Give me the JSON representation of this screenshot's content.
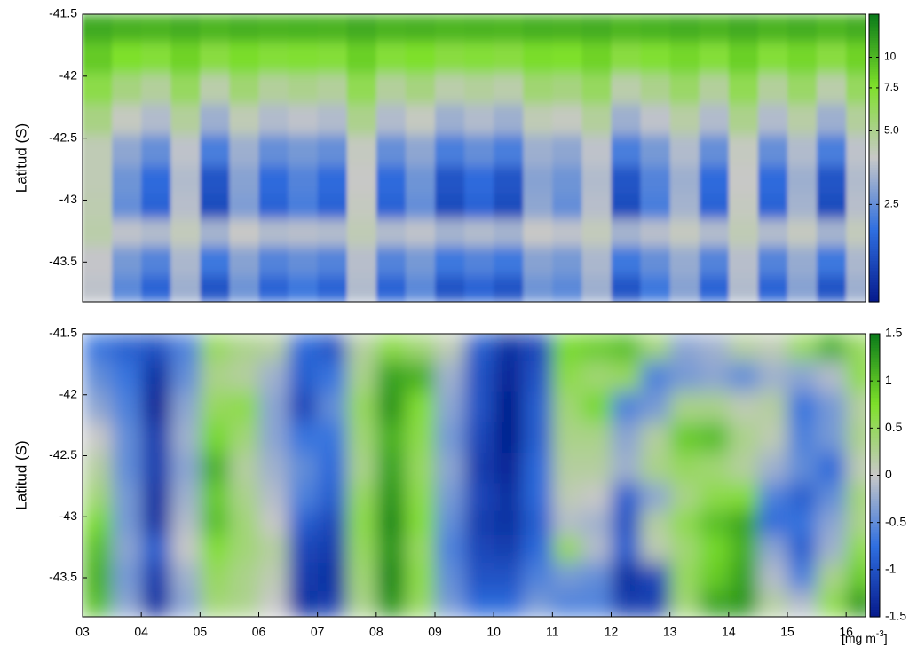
{
  "chart_data": [
    {
      "type": "heatmap",
      "ylabel": "Latitud (S)",
      "color_scale": "log",
      "colormap": [
        "#061a8c",
        "#2f6fe0",
        "#c8c8c8",
        "#7ee02a",
        "#0a7a1a"
      ],
      "xlim": [
        3,
        16.33
      ],
      "ylim": [
        -43.82,
        -41.5
      ],
      "yticks": [
        -41.5,
        -42,
        -42.5,
        -43,
        -43.5
      ],
      "clim": [
        1,
        15
      ],
      "cticks": [
        2.5,
        {
          "value": 5,
          "label": "5.0"
        },
        7.5,
        10
      ],
      "x": [
        3.25,
        3.75,
        4.25,
        4.75,
        5.25,
        5.75,
        6.25,
        6.75,
        7.25,
        7.75,
        8.25,
        8.75,
        9.25,
        9.75,
        10.25,
        10.75,
        11.25,
        11.75,
        12.25,
        12.75,
        13.25,
        13.75,
        14.25,
        14.75,
        15.25,
        15.75,
        16.25
      ],
      "y": [
        -41.6,
        -41.85,
        -42.1,
        -42.35,
        -42.6,
        -42.85,
        -43.05,
        -43.25,
        -43.5,
        -43.72
      ],
      "values": [
        [
          10.9,
          10.4,
          10.2,
          10.7,
          10.1,
          10.5,
          10.2,
          10.3,
          10.2,
          10.8,
          10.2,
          10.4,
          10.1,
          10.2,
          10.1,
          10.5,
          10.4,
          10.7,
          10.1,
          10.3,
          10.6,
          10.2,
          10.8,
          10.2,
          10.6,
          10.1,
          10.7
        ],
        [
          8.8,
          7.6,
          7.2,
          8.3,
          6.9,
          7.8,
          7.2,
          7.4,
          7.2,
          8.5,
          7.2,
          7.6,
          6.9,
          7.2,
          6.9,
          7.8,
          7.6,
          8.3,
          6.9,
          7.4,
          8.1,
          7.2,
          8.5,
          7.2,
          8.1,
          6.9,
          8.3
        ],
        [
          6.7,
          5.3,
          4.7,
          6.1,
          4.4,
          5.6,
          4.7,
          5.0,
          4.7,
          6.4,
          4.7,
          5.3,
          4.4,
          4.7,
          4.4,
          5.6,
          5.3,
          6.1,
          4.4,
          5.0,
          5.9,
          4.7,
          6.4,
          4.7,
          5.9,
          4.4,
          6.1
        ],
        [
          5.2,
          4.0,
          3.5,
          4.7,
          3.2,
          4.2,
          3.5,
          3.7,
          3.5,
          5.0,
          3.5,
          4.0,
          3.2,
          3.5,
          3.2,
          4.2,
          4.0,
          4.7,
          3.2,
          3.7,
          4.5,
          3.5,
          5.0,
          3.5,
          4.5,
          3.2,
          4.7
        ],
        [
          4.2,
          3.0,
          2.5,
          3.7,
          2.2,
          3.2,
          2.5,
          2.7,
          2.5,
          4.0,
          2.5,
          3.0,
          2.2,
          2.5,
          2.2,
          3.2,
          3.0,
          3.7,
          2.2,
          2.7,
          3.5,
          2.5,
          4.0,
          2.5,
          3.5,
          2.2,
          3.7
        ],
        [
          4.2,
          2.6,
          1.9,
          3.5,
          1.6,
          2.9,
          1.9,
          2.3,
          1.9,
          3.9,
          1.9,
          2.6,
          1.6,
          1.9,
          1.6,
          2.9,
          2.6,
          3.5,
          1.6,
          2.3,
          3.2,
          1.9,
          3.9,
          1.9,
          3.2,
          1.6,
          3.5
        ],
        [
          4.3,
          2.5,
          1.8,
          3.6,
          1.5,
          2.8,
          1.8,
          2.2,
          1.8,
          4.0,
          1.8,
          2.5,
          1.5,
          1.8,
          1.5,
          3.0,
          2.5,
          3.6,
          1.5,
          2.2,
          3.3,
          1.8,
          4.0,
          1.8,
          3.3,
          1.5,
          3.6
        ],
        [
          4.4,
          3.7,
          3.5,
          4.1,
          3.3,
          3.9,
          3.5,
          3.6,
          3.5,
          4.2,
          3.5,
          3.7,
          3.3,
          3.5,
          3.3,
          3.9,
          3.7,
          4.1,
          3.3,
          3.6,
          4.0,
          3.5,
          4.2,
          3.5,
          4.0,
          3.3,
          4.1
        ],
        [
          3.8,
          2.7,
          2.3,
          3.4,
          2.1,
          2.9,
          2.3,
          2.5,
          2.3,
          3.6,
          2.3,
          2.7,
          2.1,
          2.3,
          2.1,
          2.9,
          2.7,
          3.4,
          2.1,
          2.5,
          3.1,
          2.3,
          3.6,
          2.3,
          3.1,
          2.1,
          3.4
        ],
        [
          3.7,
          2.4,
          1.8,
          3.2,
          1.6,
          2.6,
          1.8,
          2.1,
          1.8,
          3.5,
          1.8,
          2.4,
          1.6,
          1.8,
          1.6,
          2.6,
          2.4,
          3.2,
          1.6,
          2.1,
          2.9,
          1.8,
          3.5,
          1.8,
          2.9,
          1.6,
          3.2
        ]
      ]
    },
    {
      "type": "heatmap",
      "ylabel": "Latitud (S)",
      "color_scale": "linear",
      "colormap": [
        "#061a8c",
        "#2f6fe0",
        "#c8c8c8",
        "#7ee02a",
        "#0a7a1a"
      ],
      "xlim": [
        3,
        16.33
      ],
      "ylim": [
        -43.82,
        -41.5
      ],
      "yticks": [
        -41.5,
        -42,
        -42.5,
        -43,
        -43.5
      ],
      "xticks": [
        {
          "value": 3,
          "label": "03"
        },
        {
          "value": 4,
          "label": "04"
        },
        {
          "value": 5,
          "label": "05"
        },
        {
          "value": 6,
          "label": "06"
        },
        {
          "value": 7,
          "label": "07"
        },
        {
          "value": 8,
          "label": "08"
        },
        {
          "value": 9,
          "label": "09"
        },
        {
          "value": 10,
          "label": "10"
        },
        {
          "value": 11,
          "label": "11"
        },
        {
          "value": 12,
          "label": "12"
        },
        {
          "value": 13,
          "label": "13"
        },
        {
          "value": 14,
          "label": "14"
        },
        {
          "value": 15,
          "label": "15"
        },
        {
          "value": 16,
          "label": "16"
        }
      ],
      "clim": [
        -1.5,
        1.5
      ],
      "cticks": [
        -1.5,
        -1,
        -0.5,
        0,
        0.5,
        1,
        1.5
      ],
      "unit_label": {
        "base": "[mg m",
        "sup": "-3",
        "end": "]"
      },
      "x": [
        3.25,
        3.75,
        4.25,
        4.75,
        5.25,
        5.75,
        6.25,
        6.75,
        7.25,
        7.75,
        8.25,
        8.75,
        9.25,
        9.75,
        10.25,
        10.75,
        11.25,
        11.75,
        12.25,
        12.75,
        13.25,
        13.75,
        14.25,
        14.75,
        15.25,
        15.75,
        16.25
      ],
      "y": [
        -41.6,
        -41.85,
        -42.1,
        -42.35,
        -42.6,
        -42.85,
        -43.05,
        -43.25,
        -43.5,
        -43.72
      ],
      "values": [
        [
          -0.7,
          -0.9,
          -1.0,
          -0.6,
          0.5,
          0.3,
          0.2,
          -0.8,
          -1.0,
          0.2,
          0.6,
          0.4,
          0.1,
          -0.9,
          -1.3,
          -1.1,
          0.8,
          0.9,
          1.0,
          0.4,
          -0.3,
          -0.2,
          0.2,
          0.1,
          0.5,
          1.1,
          0.5
        ],
        [
          -0.5,
          -0.7,
          -1.3,
          -0.5,
          0.3,
          0.2,
          -0.2,
          -0.9,
          -0.7,
          0.3,
          1.2,
          1.1,
          -0.2,
          -1.0,
          -1.4,
          -1.0,
          0.6,
          0.4,
          0.5,
          -0.6,
          -0.4,
          -0.3,
          -0.5,
          -0.2,
          -0.3,
          -0.1,
          0.6
        ],
        [
          -0.3,
          -0.6,
          -1.4,
          -0.3,
          0.5,
          0.6,
          -0.3,
          -1.1,
          -0.5,
          0.5,
          1.3,
          0.7,
          -0.3,
          -1.0,
          -1.5,
          -0.9,
          0.4,
          0.8,
          -0.6,
          -0.4,
          0.3,
          0.3,
          0.1,
          0.2,
          -0.7,
          -0.4,
          0.2
        ],
        [
          0,
          -0.5,
          -1.2,
          -0.2,
          0.8,
          0.4,
          -0.3,
          -0.7,
          -0.7,
          0.4,
          1.1,
          0.6,
          -0.4,
          -1.1,
          -1.5,
          -0.9,
          0.3,
          0.3,
          -0.3,
          0.2,
          0.9,
          1.0,
          0.3,
          0.1,
          -0.6,
          -0.4,
          0.3
        ],
        [
          0.2,
          -0.5,
          -1.2,
          -0.3,
          1.1,
          0.2,
          -0.2,
          -0.5,
          -0.8,
          0.3,
          1.2,
          0.5,
          -0.3,
          -1.2,
          -1.4,
          -0.8,
          0.2,
          0.2,
          -0.2,
          0.3,
          0.5,
          0.4,
          0.2,
          -0.2,
          -0.5,
          -0.8,
          0.1
        ],
        [
          0.4,
          -0.4,
          -1.3,
          -0.2,
          0.9,
          0.3,
          -0.1,
          -0.6,
          -0.9,
          0.5,
          1.3,
          0.6,
          -0.4,
          -1.1,
          -1.3,
          -0.8,
          0.1,
          0,
          -0.9,
          -0.3,
          0.3,
          0.6,
          0.7,
          -0.6,
          -0.9,
          -0.5,
          0.4
        ],
        [
          0.8,
          -0.4,
          -1.3,
          -0.1,
          1.0,
          0.4,
          0,
          -0.9,
          -1.1,
          0.6,
          1.4,
          0.7,
          -0.5,
          -1.2,
          -1.3,
          -0.9,
          -0.1,
          -0.2,
          -1.0,
          0.2,
          0.6,
          1.0,
          1.2,
          -0.8,
          -0.7,
          -0.3,
          0.3
        ],
        [
          1.0,
          -0.3,
          -0.9,
          0,
          0.7,
          0.4,
          0.2,
          -1.1,
          -1.2,
          0.5,
          1.3,
          0.5,
          -0.6,
          -1.1,
          -1.2,
          -0.8,
          0.5,
          -0.1,
          -0.9,
          0.1,
          0.4,
          0.8,
          1.1,
          -0.3,
          -0.9,
          -0.2,
          0.6
        ],
        [
          1.1,
          -0.4,
          -1.2,
          -0.2,
          0.5,
          0.3,
          0.1,
          -1.2,
          -1.3,
          0.4,
          1.4,
          0.6,
          -0.5,
          -1.0,
          -1.0,
          -0.6,
          -0.4,
          -0.5,
          -1.3,
          -1.1,
          0.5,
          0.9,
          1.2,
          -0.1,
          -0.6,
          0.3,
          0.9
        ],
        [
          1.0,
          -0.3,
          -1.3,
          -0.3,
          0.4,
          0.3,
          0,
          -1.3,
          -1.2,
          0.3,
          1.3,
          0.5,
          -0.4,
          -0.8,
          -0.8,
          -0.4,
          -0.6,
          -0.6,
          -1.2,
          -1.2,
          0.4,
          1.2,
          1.3,
          0.2,
          -0.1,
          0.6,
          1.3
        ]
      ]
    }
  ]
}
